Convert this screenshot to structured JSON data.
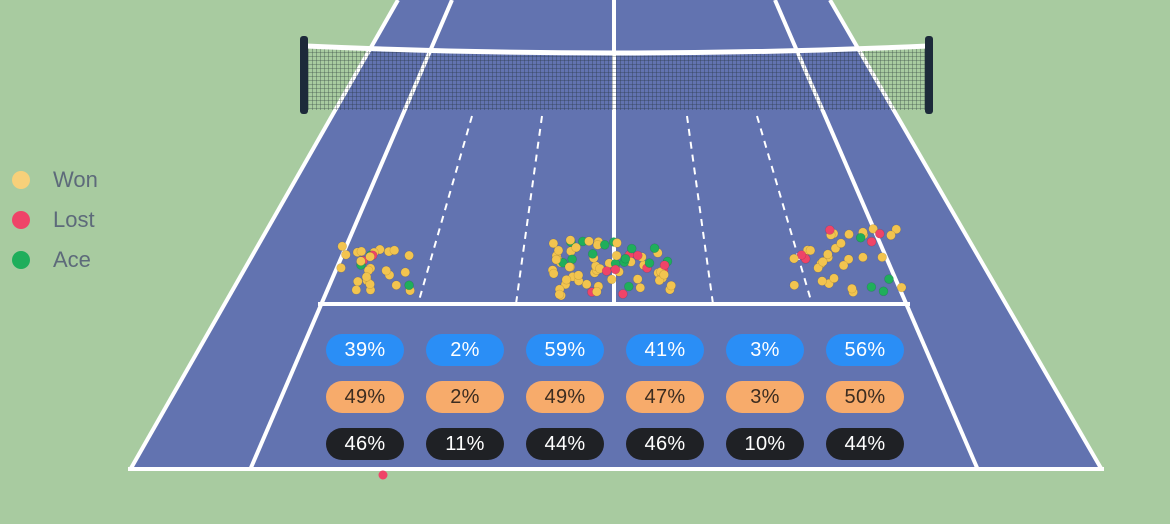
{
  "legend": [
    {
      "label": "Won",
      "color": "#f7d07a"
    },
    {
      "label": "Lost",
      "color": "#ef4468"
    },
    {
      "label": "Ace",
      "color": "#1fae5b"
    }
  ],
  "colors": {
    "background": "#a8cba0",
    "court": "#6273b0",
    "lines": "#ffffff",
    "won": "#f2c44f",
    "lost": "#ef4468",
    "ace": "#1fae5b",
    "row_blue": "#2a8ef6",
    "row_orange": "#f7ab6b",
    "row_dark": "#1f2125"
  },
  "stats": {
    "blue": [
      "39%",
      "2%",
      "59%",
      "41%",
      "3%",
      "56%"
    ],
    "orange": [
      "49%",
      "2%",
      "49%",
      "47%",
      "3%",
      "50%"
    ],
    "dark": [
      "46%",
      "11%",
      "44%",
      "46%",
      "10%",
      "44%"
    ]
  }
}
